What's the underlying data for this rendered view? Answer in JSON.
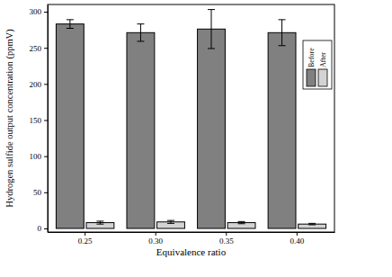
{
  "chart_data": {
    "type": "bar",
    "x_label": "Equivalence ratio",
    "y_label": "Hydrogen sulfide output concentration (ppmV)",
    "categories": [
      "0.25",
      "0.30",
      "0.35",
      "0.40"
    ],
    "series": [
      {
        "name": "Before",
        "color": "#808080",
        "values": [
          283,
          271,
          276,
          271
        ],
        "errors": [
          6,
          12,
          27,
          18
        ]
      },
      {
        "name": "After",
        "color": "#d3d3d3",
        "values": [
          8,
          9,
          8,
          6
        ],
        "errors": [
          2,
          2,
          1.5,
          1
        ]
      }
    ],
    "ylim": [
      -5,
      310
    ],
    "yticks": [
      0,
      50,
      100,
      150,
      200,
      250,
      300
    ],
    "legend": "upper right",
    "grid": false
  }
}
